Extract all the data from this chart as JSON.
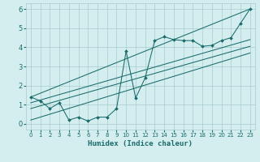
{
  "xlabel": "Humidex (Indice chaleur)",
  "bg_color": "#d4eeef",
  "grid_color": "#a8cccc",
  "line_color": "#1a6b6b",
  "xlim": [
    -0.5,
    23.5
  ],
  "ylim": [
    -0.3,
    6.3
  ],
  "xticks": [
    0,
    1,
    2,
    3,
    4,
    5,
    6,
    7,
    8,
    9,
    10,
    11,
    12,
    13,
    14,
    15,
    16,
    17,
    18,
    19,
    20,
    21,
    22,
    23
  ],
  "yticks": [
    0,
    1,
    2,
    3,
    4,
    5,
    6
  ],
  "scatter_x": [
    0,
    1,
    2,
    3,
    4,
    5,
    6,
    7,
    8,
    9,
    10,
    11,
    12,
    13,
    14,
    15,
    16,
    17,
    18,
    19,
    20,
    21,
    22,
    23
  ],
  "scatter_y": [
    1.4,
    1.2,
    0.8,
    1.1,
    0.2,
    0.35,
    0.15,
    0.35,
    0.35,
    0.8,
    3.8,
    1.35,
    2.4,
    4.35,
    4.55,
    4.4,
    4.35,
    4.35,
    4.05,
    4.1,
    4.35,
    4.5,
    5.25,
    6.0
  ],
  "line1_x": [
    0,
    23
  ],
  "line1_y": [
    1.4,
    6.0
  ],
  "line2_x": [
    0,
    23
  ],
  "line2_y": [
    1.1,
    4.4
  ],
  "line3_x": [
    0,
    23
  ],
  "line3_y": [
    0.8,
    4.05
  ],
  "line4_x": [
    0,
    23
  ],
  "line4_y": [
    0.2,
    3.7
  ]
}
